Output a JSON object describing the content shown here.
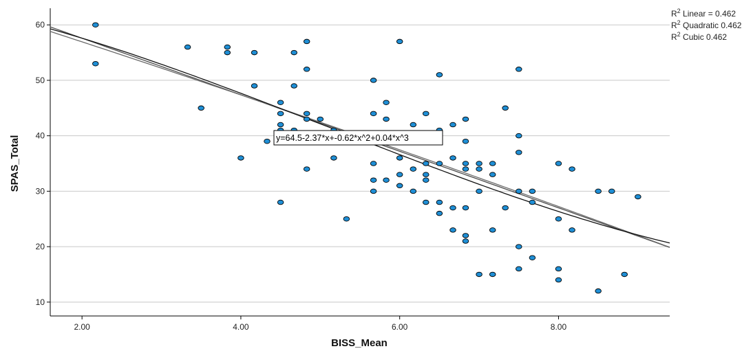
{
  "chart_data": {
    "type": "scatter",
    "xlabel": "BISS_Mean",
    "ylabel": "SPAS_Total",
    "xlim": [
      1.6,
      9.4
    ],
    "ylim": [
      7.5,
      63
    ],
    "x_ticks": [
      2,
      4,
      6,
      8
    ],
    "x_tick_labels": [
      "2.00",
      "4.00",
      "6.00",
      "8.00"
    ],
    "y_ticks": [
      10,
      20,
      30,
      40,
      50,
      60
    ],
    "y_tick_labels": [
      "10",
      "20",
      "30",
      "40",
      "50",
      "60"
    ],
    "grid": "horizontal",
    "point_color": "#1f8fd6",
    "legend_position": "top-right",
    "legend": [
      {
        "label": "R",
        "sup": "2",
        "text": " Linear = 0.462"
      },
      {
        "label": "R",
        "sup": "2",
        "text": " Quadratic 0.462"
      },
      {
        "label": "R",
        "sup": "2",
        "text": " Cubic 0.462"
      }
    ],
    "equation_label": "y=64.5-2.37*x+-0.62*x^2+0.04*x^3",
    "points": [
      [
        2.17,
        60
      ],
      [
        2.17,
        53
      ],
      [
        3.33,
        56
      ],
      [
        3.5,
        45
      ],
      [
        3.83,
        56
      ],
      [
        3.83,
        55
      ],
      [
        4.0,
        36
      ],
      [
        4.17,
        55
      ],
      [
        4.17,
        49
      ],
      [
        4.33,
        39
      ],
      [
        4.5,
        46
      ],
      [
        4.5,
        44
      ],
      [
        4.5,
        42
      ],
      [
        4.5,
        41
      ],
      [
        4.5,
        28
      ],
      [
        4.67,
        55
      ],
      [
        4.67,
        49
      ],
      [
        4.67,
        41
      ],
      [
        4.83,
        57
      ],
      [
        4.83,
        52
      ],
      [
        4.83,
        44
      ],
      [
        4.83,
        43
      ],
      [
        4.83,
        34
      ],
      [
        5.0,
        43
      ],
      [
        5.17,
        41
      ],
      [
        5.17,
        36
      ],
      [
        5.33,
        25
      ],
      [
        5.67,
        50
      ],
      [
        5.67,
        44
      ],
      [
        5.67,
        35
      ],
      [
        5.67,
        32
      ],
      [
        5.67,
        30
      ],
      [
        5.83,
        46
      ],
      [
        5.83,
        43
      ],
      [
        5.83,
        32
      ],
      [
        6.0,
        57
      ],
      [
        6.0,
        36
      ],
      [
        6.0,
        33
      ],
      [
        6.0,
        31
      ],
      [
        6.17,
        42
      ],
      [
        6.17,
        34
      ],
      [
        6.17,
        30
      ],
      [
        6.33,
        44
      ],
      [
        6.33,
        35
      ],
      [
        6.33,
        33
      ],
      [
        6.33,
        32
      ],
      [
        6.33,
        28
      ],
      [
        6.5,
        51
      ],
      [
        6.5,
        41
      ],
      [
        6.5,
        35
      ],
      [
        6.5,
        28
      ],
      [
        6.5,
        26
      ],
      [
        6.67,
        42
      ],
      [
        6.67,
        36
      ],
      [
        6.67,
        27
      ],
      [
        6.67,
        23
      ],
      [
        6.83,
        43
      ],
      [
        6.83,
        39
      ],
      [
        6.83,
        35
      ],
      [
        6.83,
        34
      ],
      [
        6.83,
        27
      ],
      [
        6.83,
        22
      ],
      [
        6.83,
        21
      ],
      [
        7.0,
        35
      ],
      [
        7.0,
        34
      ],
      [
        7.0,
        30
      ],
      [
        7.0,
        15
      ],
      [
        7.17,
        35
      ],
      [
        7.17,
        33
      ],
      [
        7.17,
        23
      ],
      [
        7.17,
        15
      ],
      [
        7.33,
        45
      ],
      [
        7.33,
        27
      ],
      [
        7.5,
        52
      ],
      [
        7.5,
        40
      ],
      [
        7.5,
        37
      ],
      [
        7.5,
        30
      ],
      [
        7.5,
        20
      ],
      [
        7.5,
        16
      ],
      [
        7.67,
        30
      ],
      [
        7.67,
        28
      ],
      [
        7.67,
        18
      ],
      [
        8.0,
        35
      ],
      [
        8.0,
        25
      ],
      [
        8.0,
        16
      ],
      [
        8.0,
        14
      ],
      [
        8.17,
        34
      ],
      [
        8.17,
        23
      ],
      [
        8.5,
        30
      ],
      [
        8.5,
        12
      ],
      [
        8.67,
        30
      ],
      [
        8.83,
        15
      ],
      [
        9.0,
        29
      ]
    ],
    "fits": [
      {
        "name": "Linear",
        "coefficients": [
          67.8,
          -5.1
        ]
      },
      {
        "name": "Quadratic",
        "coefficients": [
          66.2,
          -4.55,
          -0.04
        ]
      },
      {
        "name": "Cubic",
        "coefficients": [
          64.5,
          -2.37,
          -0.62,
          0.04
        ]
      }
    ]
  }
}
